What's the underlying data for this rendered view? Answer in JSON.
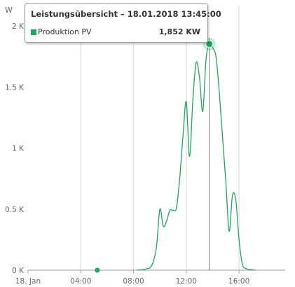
{
  "colors": {
    "series": "#1ea85a",
    "grid": "#d9d9d9",
    "crosshair": "#7f7f7f",
    "axis": "#555555"
  },
  "tooltip": {
    "title": "Leistungsübersicht – 18.01.2018 13:45:00",
    "series_name": "Produktion PV",
    "value_text": "1,852 KW"
  },
  "chart_data": {
    "type": "line",
    "title": "",
    "xlabel": "",
    "ylabel": "W",
    "xlim": [
      0,
      19.5
    ],
    "ylim": [
      0,
      2000
    ],
    "grid": "vertical",
    "x_ticks": [
      {
        "x": 0,
        "label": "18. Jan"
      },
      {
        "x": 4,
        "label": "04:00"
      },
      {
        "x": 8,
        "label": "08:00"
      },
      {
        "x": 12,
        "label": "12:00"
      },
      {
        "x": 16,
        "label": "16:00"
      }
    ],
    "y_ticks": [
      {
        "y": 0,
        "label": "0 K"
      },
      {
        "y": 500,
        "label": "0.5 K"
      },
      {
        "y": 1000,
        "label": "1 K"
      },
      {
        "y": 1500,
        "label": "1.5 K"
      },
      {
        "y": 2000,
        "label": "2 K"
      }
    ],
    "isolated_points": [
      {
        "x": 5.25,
        "y": 0
      }
    ],
    "highlight": {
      "x": 13.75,
      "y": 1852
    },
    "series": [
      {
        "name": "Produktion PV",
        "points": [
          [
            8.25,
            0
          ],
          [
            8.5,
            2
          ],
          [
            8.75,
            5
          ],
          [
            9.0,
            12
          ],
          [
            9.25,
            20
          ],
          [
            9.5,
            70
          ],
          [
            9.75,
            200
          ],
          [
            10.0,
            500
          ],
          [
            10.25,
            360
          ],
          [
            10.5,
            400
          ],
          [
            10.75,
            490
          ],
          [
            11.0,
            490
          ],
          [
            11.25,
            510
          ],
          [
            11.5,
            750
          ],
          [
            11.75,
            1100
          ],
          [
            12.0,
            1380
          ],
          [
            12.25,
            930
          ],
          [
            12.5,
            1400
          ],
          [
            12.75,
            1700
          ],
          [
            13.0,
            1580
          ],
          [
            13.25,
            1300
          ],
          [
            13.5,
            1730
          ],
          [
            13.75,
            1852
          ],
          [
            14.0,
            1820
          ],
          [
            14.25,
            1750
          ],
          [
            14.5,
            1460
          ],
          [
            14.75,
            1090
          ],
          [
            15.0,
            720
          ],
          [
            15.25,
            320
          ],
          [
            15.5,
            610
          ],
          [
            15.75,
            580
          ],
          [
            16.0,
            250
          ],
          [
            16.25,
            50
          ],
          [
            16.5,
            15
          ],
          [
            16.75,
            7
          ],
          [
            17.0,
            3
          ],
          [
            17.25,
            0
          ]
        ]
      }
    ]
  }
}
